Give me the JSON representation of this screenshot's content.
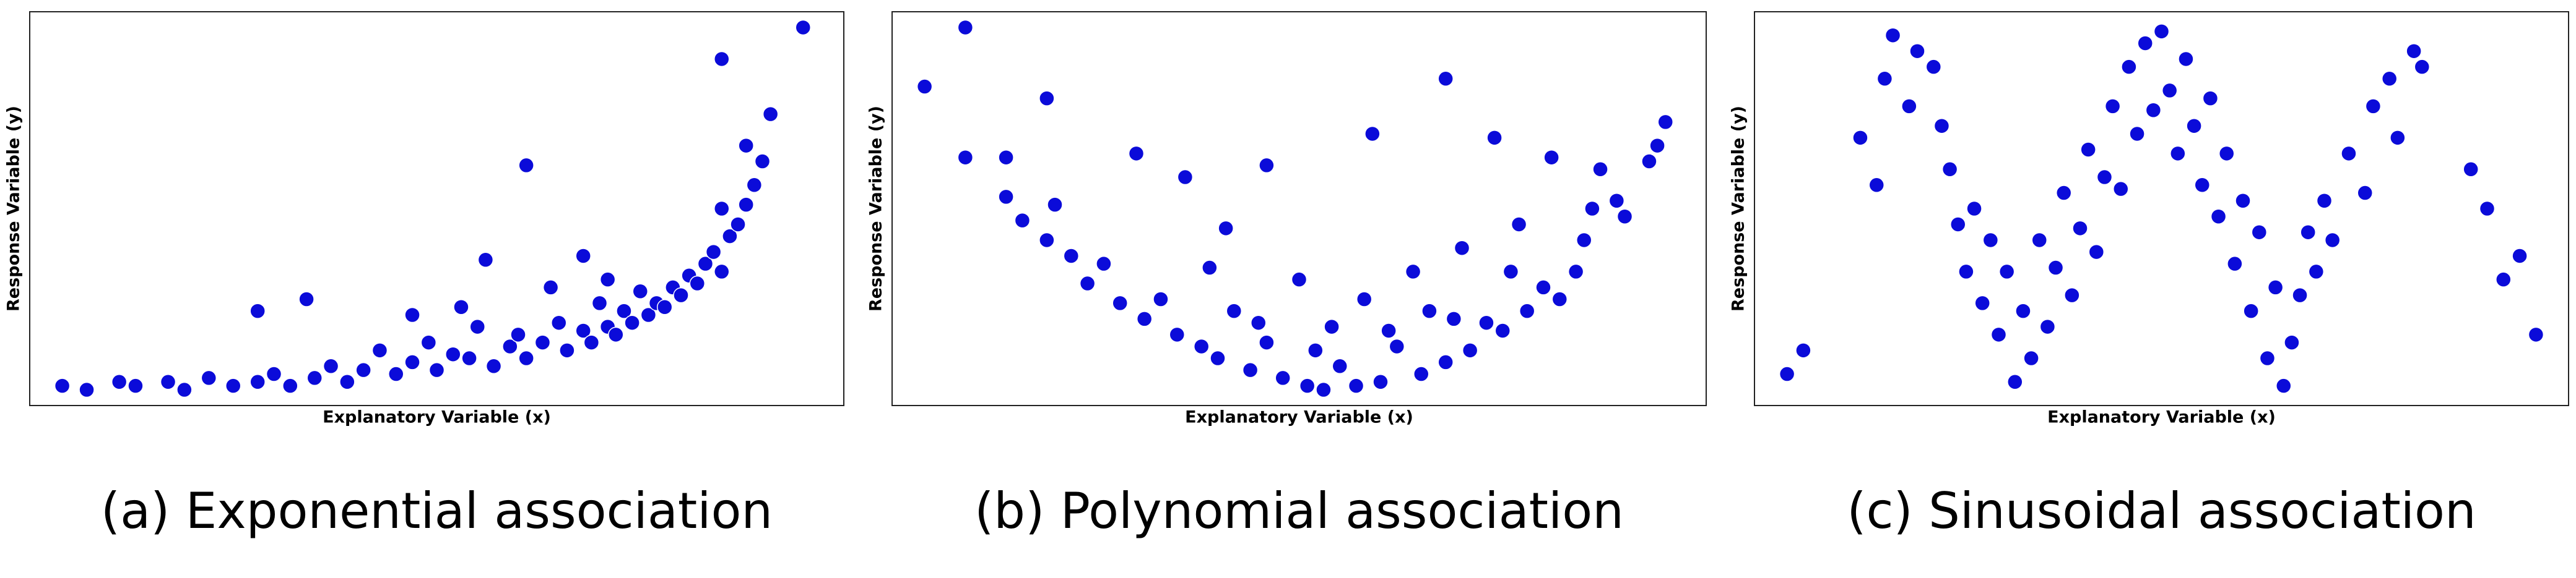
{
  "chart_data": [
    {
      "type": "scatter",
      "caption": "(a) Exponential association",
      "xlabel": "Explanatory Variable (x)",
      "ylabel": "Response Variable (y)",
      "color": "#0b0bd9",
      "xlim": [
        0,
        10
      ],
      "ylim": [
        0,
        10
      ],
      "x": [
        0.4,
        0.7,
        1.1,
        1.3,
        1.7,
        1.9,
        2.2,
        2.5,
        2.8,
        3.0,
        3.2,
        3.5,
        3.7,
        3.9,
        4.1,
        4.3,
        4.5,
        4.7,
        4.9,
        5.0,
        5.2,
        5.4,
        5.5,
        5.7,
        5.9,
        6.0,
        6.1,
        6.3,
        6.4,
        6.5,
        6.6,
        6.8,
        6.9,
        7.0,
        7.1,
        7.2,
        7.3,
        7.4,
        7.5,
        7.6,
        7.7,
        7.8,
        7.9,
        8.0,
        8.1,
        8.2,
        8.3,
        8.4,
        8.5,
        8.6,
        8.7,
        8.8,
        8.8,
        8.9,
        9.0,
        9.1,
        9.5,
        2.8,
        3.4,
        4.7,
        5.6,
        5.3,
        6.8,
        7.1,
        8.5,
        8.5,
        6.1
      ],
      "values": [
        0.5,
        0.4,
        0.6,
        0.5,
        0.6,
        0.4,
        0.7,
        0.5,
        0.6,
        0.8,
        0.5,
        0.7,
        1.0,
        0.6,
        0.9,
        1.4,
        0.8,
        1.1,
        1.6,
        0.9,
        1.3,
        1.2,
        2.0,
        1.0,
        1.5,
        1.8,
        1.2,
        1.6,
        3.0,
        2.1,
        1.4,
        1.9,
        1.6,
        2.6,
        2.0,
        1.8,
        2.4,
        2.1,
        2.9,
        2.3,
        2.6,
        2.5,
        3.0,
        2.8,
        3.3,
        3.1,
        3.6,
        3.9,
        3.4,
        4.3,
        4.6,
        5.1,
        6.6,
        5.6,
        6.2,
        7.4,
        9.6,
        2.4,
        2.7,
        2.3,
        3.7,
        2.5,
        3.8,
        3.2,
        5.0,
        8.8,
        6.1
      ]
    },
    {
      "type": "scatter",
      "caption": "(b) Polynomial association",
      "xlabel": "Explanatory Variable (x)",
      "ylabel": "Response Variable (y)",
      "color": "#0b0bd9",
      "xlim": [
        0,
        10
      ],
      "ylim": [
        0,
        10
      ],
      "x": [
        0.4,
        0.9,
        0.9,
        1.4,
        1.4,
        1.6,
        1.9,
        1.9,
        2.2,
        2.4,
        2.6,
        2.8,
        3.0,
        3.1,
        3.3,
        3.5,
        3.6,
        3.8,
        4.1,
        4.0,
        4.2,
        4.4,
        4.6,
        4.6,
        4.8,
        5.0,
        5.1,
        5.3,
        5.4,
        5.5,
        5.7,
        5.8,
        5.9,
        6.0,
        6.2,
        6.4,
        6.5,
        6.6,
        6.8,
        6.8,
        7.0,
        7.1,
        7.3,
        7.4,
        7.5,
        7.6,
        7.8,
        8.0,
        8.1,
        8.2,
        8.4,
        8.5,
        8.6,
        8.7,
        8.9,
        9.0,
        9.3,
        9.4,
        9.5,
        2.0,
        3.9,
        4.5,
        5.2,
        6.1,
        6.9,
        7.7
      ],
      "values": [
        8.1,
        9.6,
        6.3,
        6.3,
        5.3,
        4.7,
        4.2,
        7.8,
        3.8,
        3.1,
        3.6,
        2.6,
        6.4,
        2.2,
        2.7,
        1.8,
        5.8,
        1.5,
        4.5,
        1.2,
        2.4,
        0.9,
        1.6,
        6.1,
        0.7,
        3.2,
        0.5,
        0.4,
        2.0,
        1.0,
        0.5,
        2.7,
        6.9,
        0.6,
        1.5,
        3.4,
        0.8,
        2.4,
        1.1,
        8.3,
        4.0,
        1.4,
        2.1,
        6.8,
        1.9,
        3.4,
        2.4,
        3.0,
        6.3,
        2.7,
        3.4,
        4.2,
        5.0,
        6.0,
        5.2,
        4.8,
        6.2,
        6.6,
        7.2,
        5.1,
        3.5,
        2.1,
        1.4,
        1.9,
        2.2,
        4.6
      ]
    },
    {
      "type": "scatter",
      "caption": "(c) Sinusoidal association",
      "xlabel": "Explanatory Variable (x)",
      "ylabel": "Response Variable (y)",
      "color": "#0b0bd9",
      "xlim": [
        0,
        10
      ],
      "ylim": [
        0,
        10
      ],
      "x": [
        0.4,
        0.6,
        1.3,
        1.5,
        1.6,
        1.7,
        1.9,
        2.0,
        2.2,
        2.3,
        2.4,
        2.5,
        2.6,
        2.7,
        2.8,
        2.9,
        3.0,
        3.1,
        3.2,
        3.3,
        3.4,
        3.5,
        3.6,
        3.7,
        3.8,
        3.9,
        4.0,
        4.1,
        4.2,
        4.3,
        4.4,
        4.5,
        4.6,
        4.7,
        4.8,
        4.9,
        5.0,
        5.1,
        5.2,
        5.3,
        5.4,
        5.5,
        5.6,
        5.7,
        5.8,
        5.9,
        6.0,
        6.1,
        6.2,
        6.3,
        6.4,
        6.5,
        6.6,
        6.7,
        6.8,
        6.9,
        7.0,
        7.1,
        7.3,
        7.5,
        7.6,
        7.8,
        7.9,
        8.1,
        8.2,
        8.8,
        9.0,
        9.2,
        9.4,
        9.6
      ],
      "values": [
        0.8,
        1.4,
        6.8,
        5.6,
        8.3,
        9.4,
        7.6,
        9.0,
        8.6,
        7.1,
        6.0,
        4.6,
        3.4,
        5.0,
        2.6,
        4.2,
        1.8,
        3.4,
        0.6,
        2.4,
        1.2,
        4.2,
        2.0,
        3.5,
        5.4,
        2.8,
        4.5,
        6.5,
        3.9,
        5.8,
        7.6,
        5.5,
        8.6,
        6.9,
        9.2,
        7.5,
        9.5,
        8.0,
        6.4,
        8.8,
        7.1,
        5.6,
        7.8,
        4.8,
        6.4,
        3.6,
        5.2,
        2.4,
        4.4,
        1.2,
        3.0,
        0.5,
        1.6,
        2.8,
        4.4,
        3.4,
        5.2,
        4.2,
        6.4,
        5.4,
        7.6,
        8.3,
        6.8,
        9.0,
        8.6,
        6.0,
        5.0,
        3.2,
        3.8,
        1.8
      ]
    }
  ]
}
